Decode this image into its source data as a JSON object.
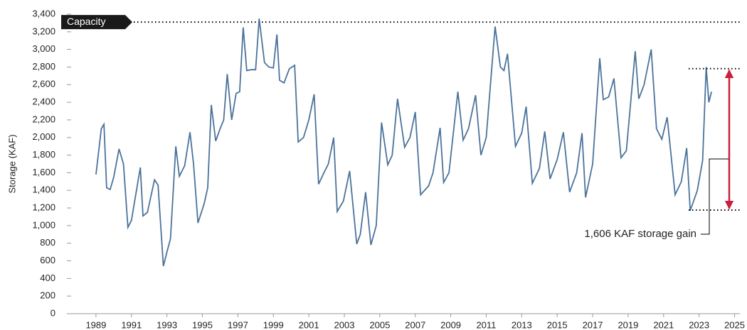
{
  "chart_data": {
    "type": "line",
    "ylabel": "Storage (KAF)",
    "x": [
      1989.0,
      1989.3,
      1989.45,
      1989.6,
      1989.8,
      1990.0,
      1990.3,
      1990.55,
      1990.8,
      1991.0,
      1991.2,
      1991.5,
      1991.65,
      1991.9,
      1992.3,
      1992.5,
      1992.8,
      1993.0,
      1993.2,
      1993.5,
      1993.7,
      1994.0,
      1994.3,
      1994.5,
      1994.75,
      1995.1,
      1995.3,
      1995.5,
      1995.75,
      1996.0,
      1996.2,
      1996.4,
      1996.65,
      1996.9,
      1997.1,
      1997.3,
      1997.5,
      1997.75,
      1998.0,
      1998.2,
      1998.5,
      1998.75,
      1999.0,
      1999.2,
      1999.35,
      1999.6,
      1999.9,
      2000.2,
      2000.4,
      2000.7,
      2001.0,
      2001.3,
      2001.55,
      2001.85,
      2002.1,
      2002.4,
      2002.6,
      2002.95,
      2003.3,
      2003.7,
      2003.9,
      2004.2,
      2004.5,
      2004.8,
      2005.1,
      2005.45,
      2005.7,
      2006.0,
      2006.4,
      2006.7,
      2007.0,
      2007.3,
      2007.75,
      2008.0,
      2008.4,
      2008.6,
      2008.9,
      2009.4,
      2009.7,
      2010.0,
      2010.4,
      2010.7,
      2011.0,
      2011.5,
      2011.8,
      2012.0,
      2012.2,
      2012.65,
      2013.0,
      2013.25,
      2013.6,
      2014.0,
      2014.3,
      2014.6,
      2015.0,
      2015.35,
      2015.7,
      2016.1,
      2016.4,
      2016.6,
      2017.0,
      2017.4,
      2017.6,
      2017.9,
      2018.2,
      2018.6,
      2018.9,
      2019.4,
      2019.6,
      2019.9,
      2020.3,
      2020.6,
      2020.9,
      2021.2,
      2021.65,
      2022.0,
      2022.3,
      2022.5,
      2022.9,
      2023.2,
      2023.4,
      2023.55,
      2023.7
    ],
    "xlim": [
      1987.6,
      2025.3
    ],
    "xticks": [
      1989,
      1991,
      1993,
      1995,
      1997,
      1999,
      2001,
      2003,
      2005,
      2007,
      2009,
      2011,
      2013,
      2015,
      2017,
      2019,
      2021,
      2023,
      2025
    ],
    "series": [
      {
        "name": "Storage",
        "color": "#4b739b",
        "values": [
          1580,
          2100,
          2150,
          1430,
          1410,
          1550,
          1870,
          1700,
          980,
          1060,
          1300,
          1660,
          1110,
          1150,
          1520,
          1460,
          540,
          700,
          850,
          1900,
          1560,
          1680,
          2060,
          1700,
          1030,
          1250,
          1430,
          2370,
          1960,
          2100,
          2200,
          2720,
          2200,
          2500,
          2520,
          3250,
          2760,
          2770,
          2770,
          3350,
          2850,
          2800,
          2790,
          3170,
          2650,
          2620,
          2780,
          2820,
          1950,
          2000,
          2200,
          2490,
          1470,
          1600,
          1700,
          2000,
          1160,
          1280,
          1620,
          790,
          900,
          1380,
          780,
          1000,
          2170,
          1690,
          1800,
          2440,
          1890,
          2000,
          2290,
          1350,
          1450,
          1600,
          2110,
          1490,
          1600,
          2520,
          1970,
          2100,
          2480,
          1800,
          2000,
          3260,
          2800,
          2760,
          2950,
          1900,
          2050,
          2350,
          1480,
          1650,
          2070,
          1530,
          1750,
          2060,
          1380,
          1600,
          2050,
          1320,
          1700,
          2900,
          2430,
          2460,
          2670,
          1770,
          1850,
          2980,
          2440,
          2600,
          3000,
          2100,
          1980,
          2230,
          1350,
          1500,
          1880,
          1170,
          1400,
          1740,
          2800,
          2400,
          2520
        ]
      }
    ],
    "ylim": [
      0,
      3400
    ],
    "yticks": [
      0,
      200,
      400,
      600,
      800,
      {
        "value": 1000,
        "label": "1,000"
      },
      {
        "value": 1200,
        "label": "1,200"
      },
      {
        "value": 1400,
        "label": "1,400"
      },
      {
        "value": 1600,
        "label": "1,600"
      },
      {
        "value": 1800,
        "label": "1,800"
      },
      {
        "value": 2000,
        "label": "2,000"
      },
      {
        "value": 2200,
        "label": "2,200"
      },
      {
        "value": 2400,
        "label": "2,400"
      },
      {
        "value": 2600,
        "label": "2,600"
      },
      {
        "value": 2800,
        "label": "2,800"
      },
      {
        "value": 3000,
        "label": "3,000"
      },
      {
        "value": 3200,
        "label": "3,200"
      },
      {
        "value": 3400,
        "label": "3,400"
      }
    ],
    "capacity": {
      "label": "Capacity",
      "value": 3310
    },
    "gain": {
      "label": "1,606 KAF storage gain",
      "low": 1176,
      "high": 2782,
      "color": "#c8203e"
    }
  }
}
